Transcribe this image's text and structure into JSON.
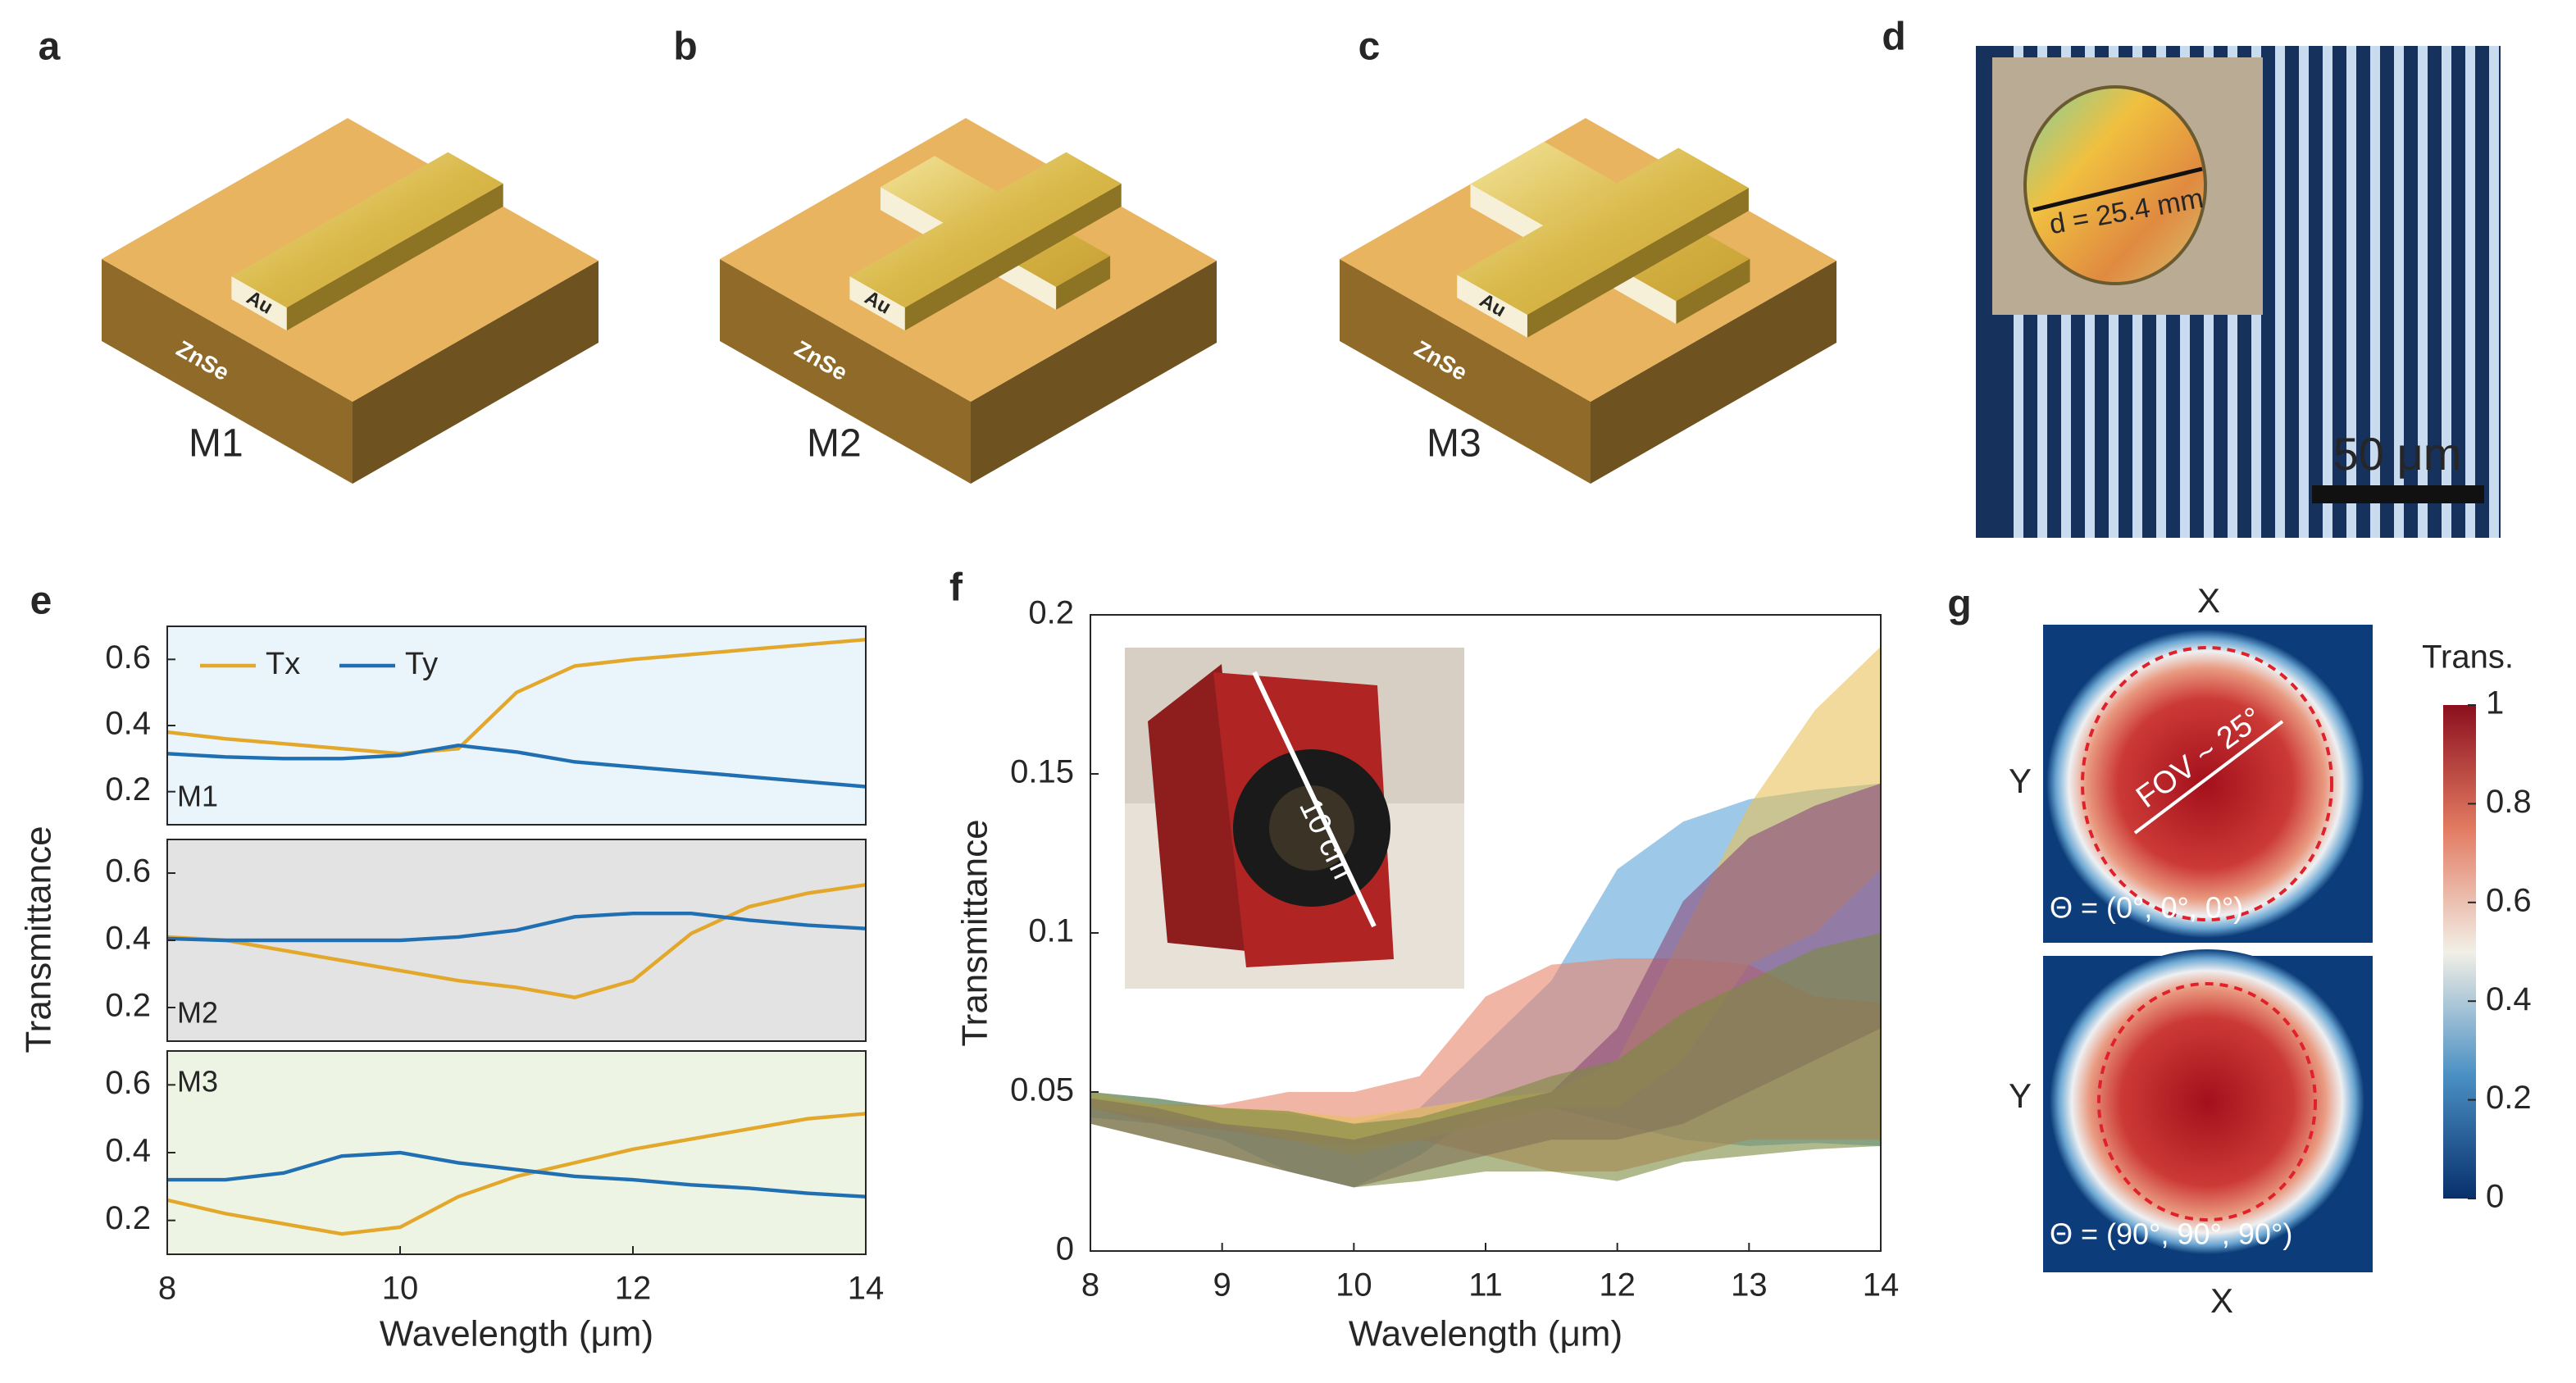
{
  "panel_labels": [
    "a",
    "b",
    "c",
    "d",
    "e",
    "f",
    "g"
  ],
  "schematics": [
    {
      "label": "M1",
      "metal": "Au",
      "substrate": "ZnSe"
    },
    {
      "label": "M2",
      "metal": "Au",
      "substrate": "ZnSe"
    },
    {
      "label": "M3",
      "metal": "Au",
      "substrate": "ZnSe"
    }
  ],
  "photo_d": {
    "diameter_label": "d = 25.4 mm",
    "scale_bar": "50 μm"
  },
  "chart_data": [
    {
      "type": "line",
      "annotation": "M1",
      "background": "#eaf4fb",
      "legend": true,
      "x": [
        8,
        8.5,
        9,
        9.5,
        10,
        10.5,
        11,
        11.5,
        12,
        12.5,
        13,
        13.5,
        14
      ],
      "xlim": [
        8,
        14
      ],
      "ylim": [
        0.1,
        0.7
      ],
      "yticks": [
        0.2,
        0.4,
        0.6
      ],
      "series": [
        {
          "name": "Tx",
          "color": "#e3a82b",
          "values": [
            0.38,
            0.36,
            0.345,
            0.33,
            0.315,
            0.33,
            0.5,
            0.58,
            0.6,
            0.615,
            0.63,
            0.645,
            0.66
          ]
        },
        {
          "name": "Ty",
          "color": "#1f6fb2",
          "values": [
            0.315,
            0.305,
            0.3,
            0.3,
            0.31,
            0.34,
            0.32,
            0.29,
            0.275,
            0.26,
            0.245,
            0.23,
            0.215
          ]
        }
      ]
    },
    {
      "type": "line",
      "annotation": "M2",
      "background": "#e3e3e3",
      "legend": false,
      "ylabel": "Transmittance",
      "x": [
        8,
        8.5,
        9,
        9.5,
        10,
        10.5,
        11,
        11.5,
        12,
        12.5,
        13,
        13.5,
        14
      ],
      "xlim": [
        8,
        14
      ],
      "ylim": [
        0.1,
        0.7
      ],
      "yticks": [
        0.2,
        0.4,
        0.6
      ],
      "series": [
        {
          "color": "#e3a82b",
          "values": [
            0.41,
            0.4,
            0.37,
            0.34,
            0.31,
            0.28,
            0.26,
            0.23,
            0.28,
            0.42,
            0.5,
            0.54,
            0.565
          ]
        },
        {
          "color": "#1f6fb2",
          "values": [
            0.405,
            0.4,
            0.4,
            0.4,
            0.4,
            0.41,
            0.43,
            0.47,
            0.48,
            0.48,
            0.46,
            0.445,
            0.435
          ]
        }
      ]
    },
    {
      "type": "line",
      "annotation": "M3",
      "background": "#eef4e4",
      "legend": false,
      "xlabel": "Wavelength (μm)",
      "x": [
        8,
        8.5,
        9,
        9.5,
        10,
        10.5,
        11,
        11.5,
        12,
        12.5,
        13,
        13.5,
        14
      ],
      "xlim": [
        8,
        14
      ],
      "xticks": [
        8,
        10,
        12,
        14
      ],
      "ylim": [
        0.1,
        0.7
      ],
      "yticks": [
        0.2,
        0.4,
        0.6
      ],
      "series": [
        {
          "color": "#e3a82b",
          "values": [
            0.26,
            0.22,
            0.19,
            0.16,
            0.18,
            0.27,
            0.33,
            0.37,
            0.41,
            0.44,
            0.47,
            0.5,
            0.515
          ]
        },
        {
          "color": "#1f6fb2",
          "values": [
            0.32,
            0.32,
            0.34,
            0.39,
            0.4,
            0.37,
            0.35,
            0.33,
            0.32,
            0.305,
            0.295,
            0.28,
            0.27
          ]
        }
      ]
    },
    {
      "type": "band",
      "xlabel": "Wavelength (μm)",
      "ylabel": "Transmittance",
      "inset_label": "10 cm",
      "x": [
        8,
        8.5,
        9,
        9.5,
        10,
        10.5,
        11,
        11.5,
        12,
        12.5,
        13,
        13.5,
        14
      ],
      "xlim": [
        8,
        14
      ],
      "xticks": [
        8,
        9,
        10,
        11,
        12,
        13,
        14
      ],
      "ylim": [
        0,
        0.2
      ],
      "yticks": [
        0,
        0.05,
        0.1,
        0.15,
        0.2
      ],
      "series": [
        {
          "color": "#5ba4d8",
          "values": [
            0.05,
            0.048,
            0.045,
            0.043,
            0.04,
            0.045,
            0.065,
            0.085,
            0.12,
            0.135,
            0.142,
            0.145,
            0.147
          ],
          "lower": [
            0.042,
            0.04,
            0.035,
            0.025,
            0.02,
            0.03,
            0.045,
            0.045,
            0.04,
            0.035,
            0.033,
            0.034,
            0.033
          ]
        },
        {
          "color": "#e8836a",
          "values": [
            0.048,
            0.046,
            0.046,
            0.05,
            0.05,
            0.055,
            0.08,
            0.09,
            0.092,
            0.092,
            0.09,
            0.08,
            0.078
          ],
          "lower": [
            0.045,
            0.04,
            0.038,
            0.035,
            0.033,
            0.035,
            0.03,
            0.025,
            0.025,
            0.03,
            0.035,
            0.035,
            0.035
          ]
        },
        {
          "color": "#e8c25a",
          "values": [
            0.05,
            0.046,
            0.045,
            0.044,
            0.042,
            0.045,
            0.048,
            0.05,
            0.06,
            0.1,
            0.14,
            0.17,
            0.19
          ],
          "lower": [
            0.045,
            0.042,
            0.04,
            0.035,
            0.03,
            0.035,
            0.04,
            0.045,
            0.045,
            0.06,
            0.09,
            0.1,
            0.12
          ]
        },
        {
          "color": "#8a4a7a",
          "values": [
            0.048,
            0.045,
            0.04,
            0.038,
            0.035,
            0.04,
            0.045,
            0.05,
            0.07,
            0.11,
            0.13,
            0.14,
            0.147
          ],
          "lower": [
            0.04,
            0.035,
            0.03,
            0.025,
            0.02,
            0.025,
            0.03,
            0.035,
            0.035,
            0.04,
            0.05,
            0.06,
            0.07
          ]
        },
        {
          "color": "#7a8a40",
          "values": [
            0.05,
            0.048,
            0.045,
            0.044,
            0.04,
            0.042,
            0.048,
            0.055,
            0.06,
            0.075,
            0.085,
            0.095,
            0.1
          ],
          "lower": [
            0.04,
            0.035,
            0.03,
            0.025,
            0.02,
            0.022,
            0.025,
            0.025,
            0.022,
            0.028,
            0.03,
            0.032,
            0.033
          ]
        }
      ]
    },
    {
      "type": "heatmap",
      "maps": [
        {
          "xlabel": "X",
          "ylabel": "Y",
          "annotation": "FOV ~ 25°",
          "orientation": "Θ = (0°, 0°, 0°)"
        },
        {
          "xlabel": "X",
          "ylabel": "Y",
          "orientation": "Θ = (90°, 90°, 90°)"
        }
      ],
      "colorbar": {
        "label": "Trans.",
        "lim": [
          0,
          1
        ],
        "ticks": [
          0,
          0.2,
          0.4,
          0.6,
          0.8,
          1
        ]
      }
    }
  ]
}
